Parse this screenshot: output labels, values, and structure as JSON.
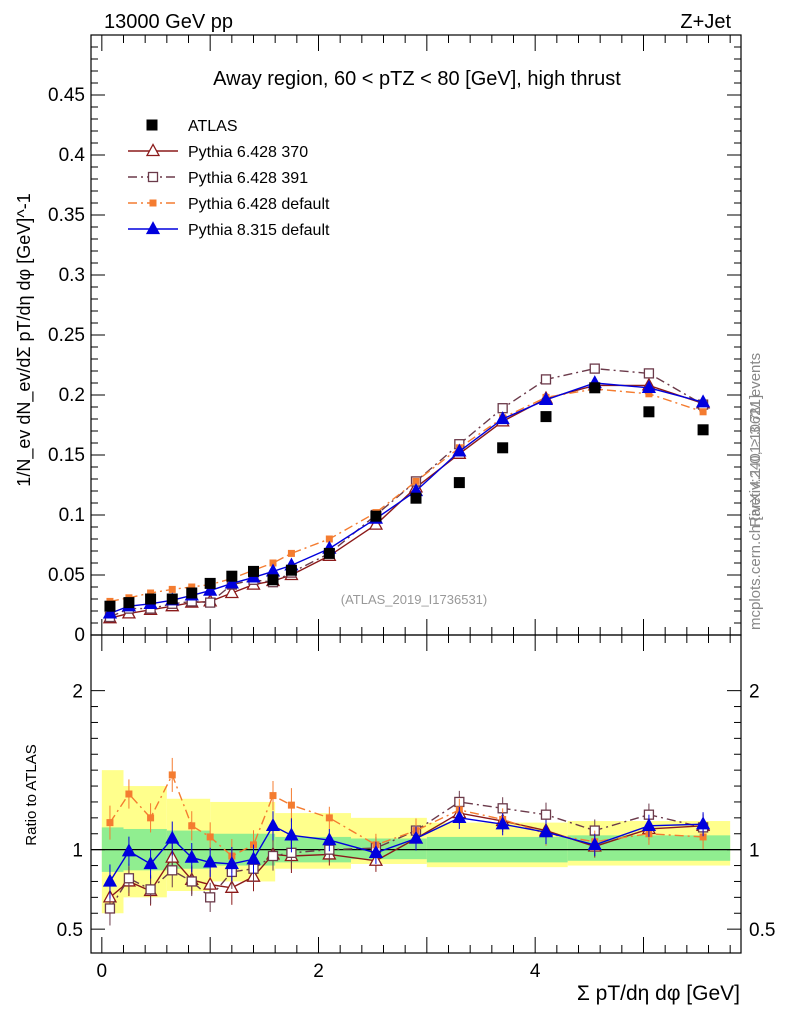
{
  "header": {
    "energy_label": "13000 GeV pp",
    "process_label": "Z+Jet"
  },
  "side_text": {
    "rivet": "Rivet 4.1.0, ≥ 3.7M events",
    "mcplots": "mcplots.cern.ch [arXiv:2401.10621]"
  },
  "chart_data": {
    "type": "scatter",
    "title": "Away region, 60 < pTZ < 80 [GeV], high thrust",
    "analysis_id": "(ATLAS_2019_I1736531)",
    "ylabel": "1/N_ev dN_ev/dΣ pT/dη dφ [GeV]^-1",
    "ratio_ylabel": "Ratio to ATLAS",
    "xlabel": "Σ pT/dη dφ [GeV]",
    "xlim": [
      -0.1,
      5.9
    ],
    "ylim": [
      0,
      0.5
    ],
    "ratio_ylim": [
      0.35,
      2.35
    ],
    "x_ticks": [
      {
        "v": 0,
        "label": "0"
      },
      {
        "v": 2,
        "label": "2"
      },
      {
        "v": 4,
        "label": "4"
      }
    ],
    "y_ticks": [
      {
        "v": 0,
        "label": "0"
      },
      {
        "v": 0.05,
        "label": "0.05"
      },
      {
        "v": 0.1,
        "label": "0.1"
      },
      {
        "v": 0.15,
        "label": "0.15"
      },
      {
        "v": 0.2,
        "label": "0.2"
      },
      {
        "v": 0.25,
        "label": "0.25"
      },
      {
        "v": 0.3,
        "label": "0.3"
      },
      {
        "v": 0.35,
        "label": "0.35"
      },
      {
        "v": 0.4,
        "label": "0.4"
      },
      {
        "v": 0.45,
        "label": "0.45"
      }
    ],
    "ratio_ticks": [
      {
        "v": 0.5,
        "label": "0.5"
      },
      {
        "v": 1,
        "label": "1"
      },
      {
        "v": 2,
        "label": "2"
      }
    ],
    "x": [
      0.075,
      0.25,
      0.45,
      0.65,
      0.83,
      1.0,
      1.2,
      1.4,
      1.58,
      1.75,
      2.1,
      2.53,
      2.9,
      3.3,
      3.7,
      4.1,
      4.55,
      5.05,
      5.55
    ],
    "data": {
      "name": "ATLAS",
      "values": [
        0.024,
        0.027,
        0.03,
        0.03,
        0.035,
        0.043,
        0.049,
        0.053,
        0.046,
        0.054,
        0.068,
        0.099,
        0.114,
        0.127,
        0.156,
        0.182,
        0.206,
        0.186,
        0.171
      ]
    },
    "series": [
      {
        "name": "Pythia 6.428 370",
        "color": "#8b1a1a",
        "marker": "open-triangle",
        "dash": "",
        "values": [
          0.014,
          0.018,
          0.021,
          0.024,
          0.027,
          0.028,
          0.035,
          0.042,
          0.045,
          0.05,
          0.066,
          0.092,
          0.123,
          0.151,
          0.178,
          0.197,
          0.208,
          0.208,
          0.193
        ],
        "ratio": [
          0.7,
          0.8,
          0.74,
          0.95,
          0.81,
          0.78,
          0.76,
          0.83,
          0.97,
          0.96,
          0.97,
          0.93,
          1.07,
          1.23,
          1.18,
          1.12,
          1.02,
          1.13,
          1.15
        ]
      },
      {
        "name": "Pythia 6.428 391",
        "color": "#6b3a4a",
        "marker": "open-square",
        "dash": "9,4,2,4",
        "values": [
          0.015,
          0.022,
          0.022,
          0.026,
          0.028,
          0.027,
          0.042,
          0.046,
          0.044,
          0.052,
          0.068,
          0.1,
          0.128,
          0.159,
          0.189,
          0.213,
          0.222,
          0.218,
          0.192
        ],
        "ratio": [
          0.63,
          0.82,
          0.75,
          0.87,
          0.8,
          0.7,
          0.86,
          0.88,
          0.96,
          0.98,
          1.0,
          1.01,
          1.12,
          1.3,
          1.26,
          1.22,
          1.12,
          1.22,
          1.14
        ]
      },
      {
        "name": "Pythia 6.428 default",
        "color": "#f47c30",
        "marker": "filled-square",
        "dash": "9,4,2,4",
        "values": [
          0.028,
          0.031,
          0.035,
          0.038,
          0.04,
          0.042,
          0.047,
          0.054,
          0.06,
          0.068,
          0.08,
          0.102,
          0.128,
          0.156,
          0.181,
          0.198,
          0.205,
          0.201,
          0.186
        ],
        "ratio": [
          1.17,
          1.35,
          1.2,
          1.47,
          1.15,
          1.08,
          0.96,
          1.03,
          1.34,
          1.28,
          1.2,
          1.03,
          1.12,
          1.25,
          1.19,
          1.1,
          1.05,
          1.1,
          1.08
        ]
      },
      {
        "name": "Pythia 8.315 default",
        "color": "#0000dd",
        "marker": "filled-triangle",
        "dash": "",
        "values": [
          0.018,
          0.024,
          0.026,
          0.029,
          0.033,
          0.037,
          0.043,
          0.048,
          0.053,
          0.058,
          0.072,
          0.097,
          0.12,
          0.153,
          0.18,
          0.196,
          0.21,
          0.206,
          0.194
        ],
        "ratio": [
          0.8,
          0.99,
          0.91,
          1.07,
          0.95,
          0.92,
          0.91,
          0.94,
          1.15,
          1.09,
          1.06,
          0.98,
          1.07,
          1.2,
          1.16,
          1.11,
          1.03,
          1.15,
          1.16
        ]
      }
    ],
    "band": {
      "inner": [
        [
          0.0,
          0.2,
          0.86,
          1.14
        ],
        [
          0.2,
          0.6,
          0.87,
          1.13
        ],
        [
          0.6,
          1.0,
          0.88,
          1.12
        ],
        [
          1.0,
          1.6,
          0.9,
          1.1
        ],
        [
          1.6,
          2.3,
          0.92,
          1.08
        ],
        [
          2.3,
          3.0,
          0.94,
          1.07
        ],
        [
          3.0,
          4.3,
          0.92,
          1.08
        ],
        [
          4.3,
          5.8,
          0.93,
          1.09
        ]
      ],
      "outer": [
        [
          0.0,
          0.2,
          0.6,
          1.5
        ],
        [
          0.2,
          0.6,
          0.7,
          1.4
        ],
        [
          0.6,
          1.0,
          0.74,
          1.32
        ],
        [
          1.0,
          1.6,
          0.8,
          1.3
        ],
        [
          1.6,
          2.3,
          0.88,
          1.23
        ],
        [
          2.3,
          3.0,
          0.91,
          1.2
        ],
        [
          3.0,
          4.3,
          0.89,
          1.17
        ],
        [
          4.3,
          5.8,
          0.9,
          1.18
        ]
      ]
    }
  }
}
